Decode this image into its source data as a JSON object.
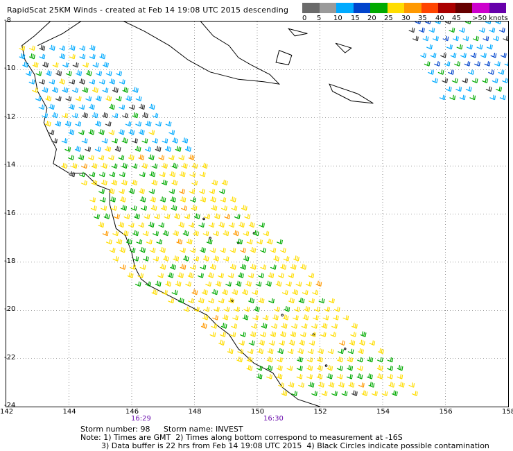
{
  "title": "RapidScat 25KM Winds - created at Feb 14 19:08 UTC 2015 descending",
  "legend": {
    "labels": [
      "0",
      "5",
      "10",
      "15",
      "20",
      "25",
      "30",
      "35",
      "40",
      "45",
      ">50 knots"
    ],
    "colors": [
      "#6b6b6b",
      "#9a9a9a",
      "#00aaff",
      "#0044cc",
      "#00aa00",
      "#ffdd00",
      "#ff9900",
      "#ff4400",
      "#aa0000",
      "#660000",
      "#cc00cc",
      "#6600aa"
    ]
  },
  "axes": {
    "lon_labels": [
      "142",
      "144",
      "146",
      "148",
      "150",
      "152",
      "154",
      "156",
      "158"
    ],
    "lat_labels": [
      "-8",
      "-10",
      "-12",
      "-14",
      "-16",
      "-18",
      "-20",
      "-22",
      "-24"
    ]
  },
  "times": [
    "16:29",
    "16:30"
  ],
  "footer": {
    "storm_number": "Storm number: 98",
    "storm_name": "Storm name: INVEST",
    "note1": "Note: 1) Times are GMT  2) Times along bottom correspond to measurement at -16S",
    "note2": "3) Data buffer is 22 hrs from Feb 14 19:08 UTC 2015  4) Black Circles indicate possible contamination"
  },
  "map": {
    "lon_range": [
      142,
      158
    ],
    "lat_range": [
      -24,
      -8
    ],
    "swath_color_main": "#ffdd00",
    "swath_color_secondary": "#00aa00"
  }
}
